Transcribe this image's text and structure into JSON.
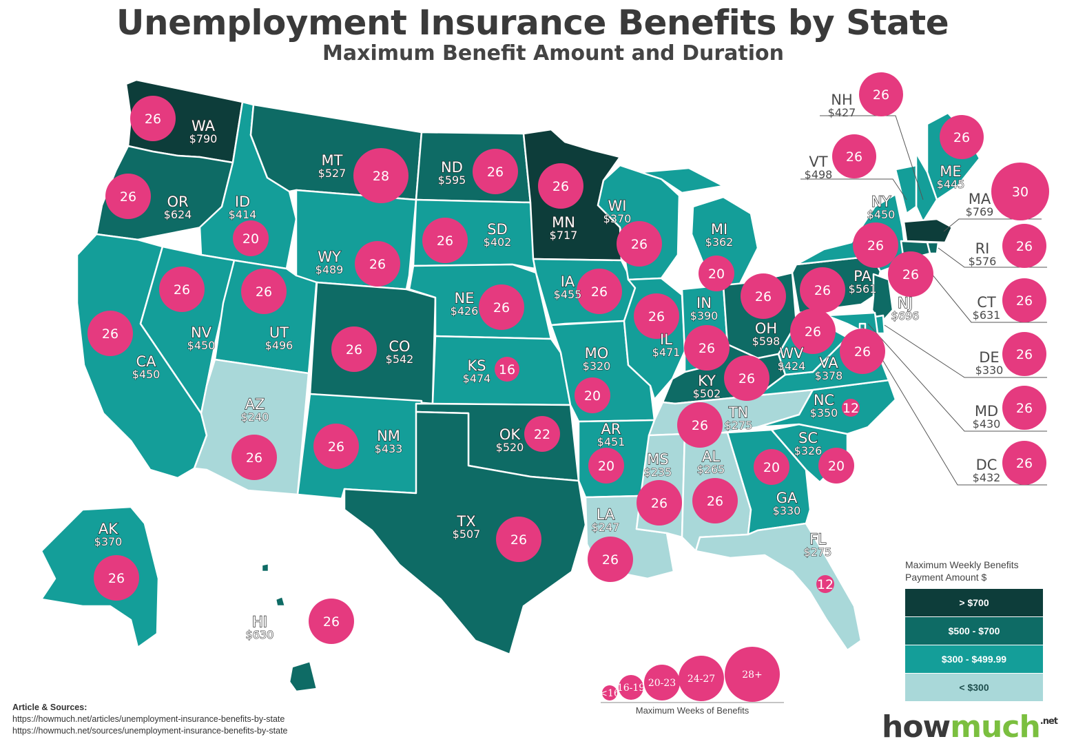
{
  "title": "Unemployment Insurance Benefits by State",
  "subtitle": "Maximum Benefit Amount and Duration",
  "colors": {
    "over_700": "#0d3d3a",
    "500_700": "#0e6b65",
    "300_499": "#149e99",
    "under_300": "#a9d8d9",
    "bubble": "#e53a7f",
    "logo_how": "#3a3a3a",
    "logo_much": "#7bbf3f"
  },
  "states": [
    {
      "abbr": "WA",
      "amount": "$790",
      "weeks": 26,
      "tier": "over_700"
    },
    {
      "abbr": "OR",
      "amount": "$624",
      "weeks": 26,
      "tier": "500_700"
    },
    {
      "abbr": "CA",
      "amount": "$450",
      "weeks": 26,
      "tier": "300_499"
    },
    {
      "abbr": "ID",
      "amount": "$414",
      "weeks": 20,
      "tier": "300_499"
    },
    {
      "abbr": "NV",
      "amount": "$450",
      "weeks": 26,
      "tier": "300_499"
    },
    {
      "abbr": "UT",
      "amount": "$496",
      "weeks": 26,
      "tier": "300_499"
    },
    {
      "abbr": "AZ",
      "amount": "$240",
      "weeks": 26,
      "tier": "under_300"
    },
    {
      "abbr": "MT",
      "amount": "$527",
      "weeks": 28,
      "tier": "500_700"
    },
    {
      "abbr": "WY",
      "amount": "$489",
      "weeks": 26,
      "tier": "300_499"
    },
    {
      "abbr": "CO",
      "amount": "$542",
      "weeks": 26,
      "tier": "500_700"
    },
    {
      "abbr": "NM",
      "amount": "$433",
      "weeks": 26,
      "tier": "300_499"
    },
    {
      "abbr": "ND",
      "amount": "$595",
      "weeks": 26,
      "tier": "500_700"
    },
    {
      "abbr": "SD",
      "amount": "$402",
      "weeks": 26,
      "tier": "300_499"
    },
    {
      "abbr": "NE",
      "amount": "$426",
      "weeks": 26,
      "tier": "300_499"
    },
    {
      "abbr": "KS",
      "amount": "$474",
      "weeks": 16,
      "tier": "300_499"
    },
    {
      "abbr": "OK",
      "amount": "$520",
      "weeks": 22,
      "tier": "500_700"
    },
    {
      "abbr": "TX",
      "amount": "$507",
      "weeks": 26,
      "tier": "500_700"
    },
    {
      "abbr": "MN",
      "amount": "$717",
      "weeks": 26,
      "tier": "over_700"
    },
    {
      "abbr": "IA",
      "amount": "$455",
      "weeks": 26,
      "tier": "300_499"
    },
    {
      "abbr": "MO",
      "amount": "$320",
      "weeks": 20,
      "tier": "300_499"
    },
    {
      "abbr": "AR",
      "amount": "$451",
      "weeks": 20,
      "tier": "300_499"
    },
    {
      "abbr": "LA",
      "amount": "$247",
      "weeks": 26,
      "tier": "under_300"
    },
    {
      "abbr": "WI",
      "amount": "$370",
      "weeks": 26,
      "tier": "300_499"
    },
    {
      "abbr": "IL",
      "amount": "$471",
      "weeks": 26,
      "tier": "300_499"
    },
    {
      "abbr": "MI",
      "amount": "$362",
      "weeks": 20,
      "tier": "300_499"
    },
    {
      "abbr": "IN",
      "amount": "$390",
      "weeks": 26,
      "tier": "300_499"
    },
    {
      "abbr": "OH",
      "amount": "$598",
      "weeks": 26,
      "tier": "500_700"
    },
    {
      "abbr": "KY",
      "amount": "$502",
      "weeks": 26,
      "tier": "500_700"
    },
    {
      "abbr": "TN",
      "amount": "$275",
      "weeks": 26,
      "tier": "under_300"
    },
    {
      "abbr": "MS",
      "amount": "$235",
      "weeks": 26,
      "tier": "under_300"
    },
    {
      "abbr": "AL",
      "amount": "$265",
      "weeks": 26,
      "tier": "under_300"
    },
    {
      "abbr": "GA",
      "amount": "$330",
      "weeks": 20,
      "tier": "300_499"
    },
    {
      "abbr": "FL",
      "amount": "$275",
      "weeks": 12,
      "tier": "under_300"
    },
    {
      "abbr": "SC",
      "amount": "$326",
      "weeks": 20,
      "tier": "300_499"
    },
    {
      "abbr": "NC",
      "amount": "$350",
      "weeks": 12,
      "tier": "300_499"
    },
    {
      "abbr": "VA",
      "amount": "$378",
      "weeks": 26,
      "tier": "300_499"
    },
    {
      "abbr": "WV",
      "amount": "$424",
      "weeks": 26,
      "tier": "300_499"
    },
    {
      "abbr": "PA",
      "amount": "$561",
      "weeks": 26,
      "tier": "500_700"
    },
    {
      "abbr": "NY",
      "amount": "$450",
      "weeks": 26,
      "tier": "300_499"
    },
    {
      "abbr": "NJ",
      "amount": "$696",
      "weeks": 26,
      "tier": "500_700"
    },
    {
      "abbr": "ME",
      "amount": "$445",
      "weeks": 26,
      "tier": "300_499"
    },
    {
      "abbr": "NH",
      "amount": "$427",
      "weeks": 26,
      "tier": "300_499"
    },
    {
      "abbr": "VT",
      "amount": "$498",
      "weeks": 26,
      "tier": "300_499"
    },
    {
      "abbr": "MA",
      "amount": "$769",
      "weeks": 30,
      "tier": "over_700"
    },
    {
      "abbr": "RI",
      "amount": "$576",
      "weeks": 26,
      "tier": "500_700"
    },
    {
      "abbr": "CT",
      "amount": "$631",
      "weeks": 26,
      "tier": "500_700"
    },
    {
      "abbr": "DE",
      "amount": "$330",
      "weeks": 26,
      "tier": "300_499"
    },
    {
      "abbr": "MD",
      "amount": "$430",
      "weeks": 26,
      "tier": "300_499"
    },
    {
      "abbr": "DC",
      "amount": "$432",
      "weeks": 26,
      "tier": "300_499"
    },
    {
      "abbr": "AK",
      "amount": "$370",
      "weeks": 26,
      "tier": "300_499"
    },
    {
      "abbr": "HI",
      "amount": "$630",
      "weeks": 26,
      "tier": "500_700"
    }
  ],
  "legend": {
    "title_line1": "Maximum Weekly Benefits",
    "title_line2": "Payment Amount $",
    "items": [
      {
        "label": "> $700",
        "tier": "over_700"
      },
      {
        "label": "$500 - $700",
        "tier": "500_700"
      },
      {
        "label": "$300 - $499.99",
        "tier": "300_499"
      },
      {
        "label": "< $300",
        "tier": "under_300"
      }
    ]
  },
  "size_legend": {
    "title": "Maximum Weeks of Benefits",
    "labels": [
      "<16",
      "16-19",
      "20-23",
      "24-27",
      "28+"
    ]
  },
  "sources": {
    "heading": "Article & Sources:",
    "line1": "https://howmuch.net/articles/unemployment-insurance-benefits-by-state",
    "line2": "https://howmuch.net/sources/unemployment-insurance-benefits-by-state"
  },
  "logo": {
    "how": "how",
    "much": "much",
    "net": ".net"
  }
}
